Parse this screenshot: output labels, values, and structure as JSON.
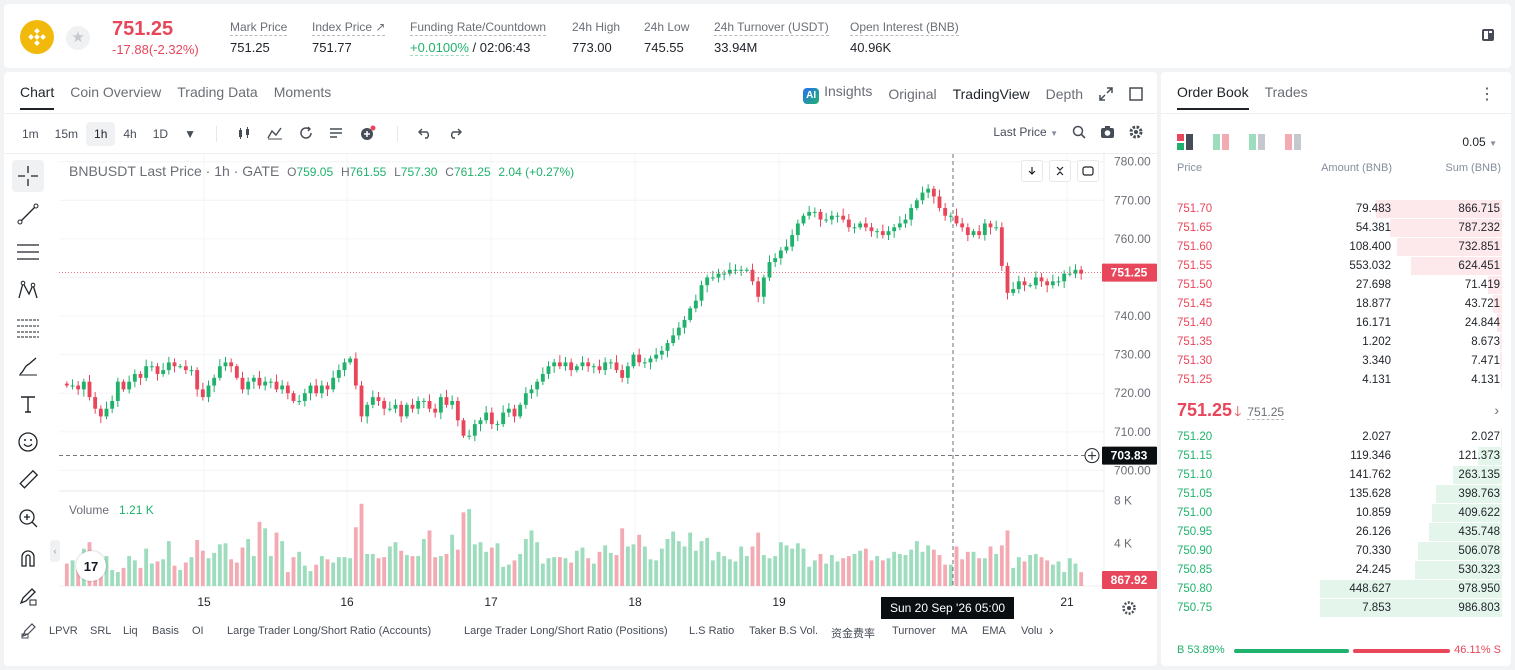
{
  "header": {
    "last_price": "751.25",
    "change": "-17.88(-2.32%)",
    "stats": [
      {
        "label": "Mark Price",
        "value": "751.25"
      },
      {
        "label": "Index Price ↗",
        "value": "751.77"
      },
      {
        "label": "Funding Rate/Countdown",
        "value_pos": "+0.0100%",
        "value": " / 02:06:43"
      },
      {
        "label": "24h High",
        "value": "773.00"
      },
      {
        "label": "24h Low",
        "value": "745.55"
      },
      {
        "label": "24h Turnover (USDT)",
        "value": "33.94M"
      },
      {
        "label": "Open Interest (BNB)",
        "value": "40.96K"
      }
    ]
  },
  "chart_panel": {
    "tabs": [
      "Chart",
      "Coin Overview",
      "Trading Data",
      "Moments"
    ],
    "right_tabs": [
      "Insights",
      "Original",
      "TradingView",
      "Depth"
    ],
    "ai_badge": "AI",
    "intervals": [
      "1m",
      "15m",
      "1h",
      "4h",
      "1D"
    ],
    "selected_interval": "1h",
    "price_type": "Last Price",
    "legend": {
      "symbol": "BNBUSDT Last Price · 1h · GATE",
      "o_key": "O",
      "o": "759.05",
      "h_key": "H",
      "h": "761.55",
      "l_key": "L",
      "l": "757.30",
      "c_key": "C",
      "c": "761.25",
      "chg": "2.04 (+0.27%)"
    },
    "volume_label": "Volume",
    "volume_value": "1.21 K",
    "crosshair_price": "703.83",
    "last_price_tag": "751.25",
    "last_vol_tag": "867.92",
    "crosshair_time": "Sun 20 Sep '26   05:00",
    "tv_logo": "17",
    "indicators": [
      "LPVR",
      "SRL",
      "Liq",
      "Basis",
      "OI",
      "Large Trader Long/Short Ratio (Accounts)",
      "Large Trader Long/Short Ratio (Positions)",
      "L.S Ratio",
      "Taker B.S Vol.",
      "资金费率",
      "Turnover",
      "MA",
      "EMA",
      "Volu"
    ],
    "colors": {
      "up": "#20b26c",
      "down": "#e8465a"
    }
  },
  "chart_data": {
    "type": "candlestick",
    "interval": "1h",
    "y_ticks": [
      "780.00",
      "770.00",
      "760.00",
      "750.00",
      "740.00",
      "730.00",
      "720.00",
      "710.00",
      "700.00"
    ],
    "ylim": [
      697,
      782
    ],
    "x_ticks": [
      "15",
      "16",
      "17",
      "18",
      "19",
      "21"
    ],
    "volume_ticks": [
      "8 K",
      "4 K"
    ],
    "volume_lim": [
      0,
      8800
    ],
    "candles_close": [
      722,
      722,
      721,
      723,
      719,
      716,
      714,
      716,
      718,
      723,
      721,
      723,
      725,
      724,
      727,
      727,
      725,
      726,
      728,
      727,
      727,
      726,
      726,
      721,
      719,
      722,
      724,
      727,
      728,
      727,
      724,
      721,
      723,
      724,
      722,
      723,
      723,
      721,
      722,
      720,
      718,
      718,
      720,
      722,
      720,
      722,
      721,
      724,
      726,
      728,
      729,
      722,
      714,
      717,
      719,
      718,
      716,
      716,
      717,
      714,
      717,
      716,
      718,
      718,
      716,
      715,
      719,
      717,
      718,
      713,
      709,
      709,
      712,
      713,
      715,
      712,
      712,
      715,
      716,
      714,
      717,
      720,
      721,
      723,
      725,
      727,
      728,
      727,
      728,
      726,
      727,
      728,
      727,
      727,
      726,
      728,
      728,
      726,
      724,
      727,
      730,
      728,
      728,
      729,
      730,
      731,
      733,
      735,
      737,
      739,
      742,
      744,
      748,
      750,
      750,
      751,
      751,
      752,
      752,
      752,
      752,
      749,
      745,
      750,
      754,
      755,
      757,
      758,
      761,
      764,
      766,
      767,
      767,
      765,
      765,
      766,
      766,
      765,
      763,
      763,
      764,
      763,
      762,
      762,
      761,
      762,
      763,
      764,
      765,
      768,
      770,
      772,
      773,
      771,
      768,
      766,
      766,
      764,
      763,
      761,
      762,
      761,
      764,
      763,
      763,
      753,
      746,
      747,
      749,
      748,
      748,
      750,
      749,
      748,
      749,
      749,
      751,
      751,
      752,
      751
    ],
    "volumes": [
      2100,
      2400,
      2000,
      3500,
      4100,
      2600,
      2200,
      2800,
      1500,
      1300,
      1700,
      2800,
      2400,
      1700,
      3500,
      2100,
      2300,
      2500,
      4200,
      1900,
      1500,
      2200,
      2700,
      4300,
      3300,
      2600,
      3100,
      3900,
      4000,
      2500,
      2200,
      3600,
      4400,
      2800,
      6000,
      5400,
      2800,
      5000,
      4200,
      1300,
      2700,
      3200,
      1900,
      1400,
      2000,
      2800,
      2500,
      2200,
      2700,
      2700,
      2600,
      5500,
      7700,
      3000,
      3000,
      2600,
      2700,
      3700,
      4100,
      3300,
      2900,
      2800,
      2800,
      4400,
      5200,
      2700,
      2800,
      3000,
      4800,
      3400,
      6900,
      7200,
      3900,
      4100,
      3200,
      3600,
      4000,
      1800,
      2000,
      2400,
      3000,
      4400,
      5200,
      4100,
      2100,
      2600,
      2700,
      2700,
      2600,
      2200,
      3300,
      3600,
      2600,
      2100,
      3200,
      3800,
      3100,
      2900,
      5400,
      3700,
      3900,
      4800,
      3700,
      2500,
      2400,
      3500,
      4400,
      5100,
      4200,
      3700,
      5000,
      3300,
      4200,
      4500,
      2400,
      3200,
      2800,
      2500,
      2300,
      3700,
      2800,
      3700,
      5000,
      2900,
      2600,
      2800,
      4100,
      3800,
      3500,
      4000,
      3500,
      1800,
      2400,
      3000,
      2100,
      2900,
      2300,
      2600,
      2800,
      3000,
      3300,
      3500,
      2400,
      2800,
      2400,
      2600,
      3200,
      3000,
      2900,
      3400,
      4200,
      3200,
      3800,
      3400,
      2900,
      2000,
      2000,
      3700,
      2500,
      3200,
      3200,
      2600,
      2600,
      3700,
      3000,
      3800,
      5200,
      1700,
      2700,
      2300,
      2900,
      3000,
      2700,
      2400,
      2000,
      2300,
      1300,
      2600,
      2100,
      1300
    ]
  },
  "order_book": {
    "tabs": [
      "Order Book",
      "Trades"
    ],
    "precision": "0.05",
    "headers": [
      "Price",
      "Amount (BNB)",
      "Sum (BNB)"
    ],
    "asks": [
      {
        "price": "751.70",
        "amount": "79.483",
        "sum": "866.715",
        "depth": 0.36
      },
      {
        "price": "751.65",
        "amount": "54.381",
        "sum": "787.232",
        "depth": 0.32
      },
      {
        "price": "751.60",
        "amount": "108.400",
        "sum": "732.851",
        "depth": 0.3
      },
      {
        "price": "751.55",
        "amount": "553.032",
        "sum": "624.451",
        "depth": 0.26
      },
      {
        "price": "751.50",
        "amount": "27.698",
        "sum": "71.419",
        "depth": 0.04
      },
      {
        "price": "751.45",
        "amount": "18.877",
        "sum": "43.721",
        "depth": 0.025
      },
      {
        "price": "751.40",
        "amount": "16.171",
        "sum": "24.844",
        "depth": 0.015
      },
      {
        "price": "751.35",
        "amount": "1.202",
        "sum": "8.673",
        "depth": 0.006
      },
      {
        "price": "751.30",
        "amount": "3.340",
        "sum": "7.471",
        "depth": 0.005
      },
      {
        "price": "751.25",
        "amount": "4.131",
        "sum": "4.131",
        "depth": 0.003
      }
    ],
    "mid_price": "751.25",
    "mid_index": "751.25",
    "bids": [
      {
        "price": "751.20",
        "amount": "2.027",
        "sum": "2.027",
        "depth": 0.003
      },
      {
        "price": "751.15",
        "amount": "119.346",
        "sum": "121.373",
        "depth": 0.07
      },
      {
        "price": "751.10",
        "amount": "141.762",
        "sum": "263.135",
        "depth": 0.14
      },
      {
        "price": "751.05",
        "amount": "135.628",
        "sum": "398.763",
        "depth": 0.19
      },
      {
        "price": "751.00",
        "amount": "10.859",
        "sum": "409.622",
        "depth": 0.2
      },
      {
        "price": "750.95",
        "amount": "26.126",
        "sum": "435.748",
        "depth": 0.21
      },
      {
        "price": "750.90",
        "amount": "70.330",
        "sum": "506.078",
        "depth": 0.24
      },
      {
        "price": "750.85",
        "amount": "24.245",
        "sum": "530.323",
        "depth": 0.25
      },
      {
        "price": "750.80",
        "amount": "448.627",
        "sum": "978.950",
        "depth": 0.52
      },
      {
        "price": "750.75",
        "amount": "7.853",
        "sum": "986.803",
        "depth": 0.52
      }
    ],
    "buy_ratio": "B 53.89%",
    "sell_ratio": "46.11% S"
  }
}
